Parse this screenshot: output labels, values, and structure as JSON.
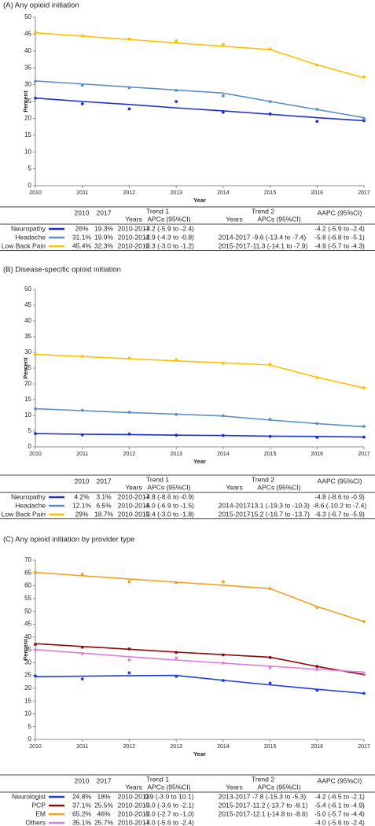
{
  "chart_data": [
    {
      "type": "line",
      "title": "(A)  Any opioid initiation",
      "xlabel": "Year",
      "ylabel": "Percent",
      "x": [
        2010,
        2011,
        2012,
        2013,
        2014,
        2015,
        2016,
        2017
      ],
      "xlim": [
        2010,
        2017
      ],
      "ylim": [
        0,
        50
      ],
      "yticks": [
        0,
        5,
        10,
        15,
        20,
        25,
        30,
        35,
        40,
        45,
        50
      ],
      "series": [
        {
          "name": "Neuropathy",
          "color": "#1f2fd6",
          "values": [
            26,
            25,
            24.1,
            23.1,
            22.2,
            21.2,
            20.2,
            19.3
          ],
          "points": [
            26,
            24.3,
            22.8,
            25,
            21.8,
            21.3,
            19.1,
            19.3
          ]
        },
        {
          "name": "Headache",
          "color": "#5b8fc4",
          "values": [
            31.1,
            30.2,
            29.3,
            28.4,
            27.5,
            25,
            22.6,
            20.2
          ],
          "points": [
            31,
            29.8,
            29.1,
            28.3,
            26.7,
            25,
            22.7,
            19.9
          ]
        },
        {
          "name": "Low Back Pain",
          "color": "#ffc000",
          "values": [
            45.4,
            44.4,
            43.4,
            42.4,
            41.4,
            40.4,
            35.9,
            32
          ],
          "points": [
            45.6,
            44.5,
            43.6,
            43,
            41.9,
            40.6,
            35.8,
            32.3
          ]
        }
      ],
      "table": {
        "columns": [
          "2010",
          "2017"
        ],
        "trends": [
          {
            "label": "Trend 1",
            "subheaders": [
              "Years",
              "APCs (95%CI)"
            ]
          },
          {
            "label": "Trend 2",
            "subheaders": [
              "Years",
              "APCs (95%CI)"
            ]
          }
        ],
        "aapc": "AAPC (95%CI)",
        "rows": [
          [
            "26%",
            "19.3%",
            "2010-2017",
            "-4.2 (-5.9 to -2.4)",
            null,
            null,
            "-4.2 (-5.9 to -2.4)"
          ],
          [
            "31.1%",
            "19.9%",
            "2010-2014",
            "-2.9 (-4.3 to -0.8)",
            "2014-2017",
            "-9.6 (-13.4 to -7.4)",
            "-5.8 (-6.8 to -5.1)"
          ],
          [
            "45.4%",
            "32.3%",
            "2010-2015",
            "-2.3 (-3.0 to -1.2)",
            "2015-2017",
            "-11.3 (-14.1 to -7.9)",
            "-4.9 (-5.7 to -4.3)"
          ]
        ]
      }
    },
    {
      "type": "line",
      "title": "(B)  Disease-specific opioid initiation",
      "xlabel": "Year",
      "ylabel": "Percent",
      "x": [
        2010,
        2011,
        2012,
        2013,
        2014,
        2015,
        2016,
        2017
      ],
      "xlim": [
        2010,
        2017
      ],
      "ylim": [
        0,
        50
      ],
      "yticks": [
        0,
        5,
        10,
        15,
        20,
        25,
        30,
        35,
        40,
        45,
        50
      ],
      "series": [
        {
          "name": "Neuropathy",
          "color": "#1f2fd6",
          "values": [
            4.2,
            4,
            3.9,
            3.7,
            3.6,
            3.4,
            3.3,
            3.1
          ],
          "points": [
            4.2,
            3.8,
            4.1,
            3.7,
            3.6,
            3.3,
            3,
            3.1
          ]
        },
        {
          "name": "Headache",
          "color": "#5b8fc4",
          "values": [
            12.1,
            11.5,
            10.9,
            10.4,
            9.8,
            8.5,
            7.4,
            6.4
          ],
          "points": [
            12.1,
            11.6,
            11,
            10.3,
            9.9,
            8.7,
            7.4,
            6.5
          ]
        },
        {
          "name": "Low Back Pain",
          "color": "#ffc000",
          "values": [
            29.4,
            28.7,
            28,
            27.3,
            26.7,
            26,
            22.1,
            18.7
          ],
          "points": [
            29.3,
            28.7,
            28.2,
            27.7,
            26.5,
            26.2,
            22,
            18.7
          ]
        }
      ],
      "table": {
        "columns": [
          "2010",
          "2017"
        ],
        "trends": [
          {
            "label": "Trend 1",
            "subheaders": [
              "Years",
              "APCs (95%CI)"
            ]
          },
          {
            "label": "Trend 2",
            "subheaders": [
              "Years",
              "APCs (95%CI)"
            ]
          }
        ],
        "aapc": "AAPC (95%CI)",
        "rows": [
          [
            "4.2%",
            "3.1%",
            "2010-2017",
            "-4.8 (-8.6 to -0.9)",
            null,
            null,
            "-4.8 (-8.6 to -0.9)"
          ],
          [
            "12.1%",
            "6.5%",
            "2010-2014",
            "-5.0 (-6.9 to -1.5)",
            "2014-2017",
            "-13.1 (-19.3 to -10.3)",
            "-8.6 (-10.2 to -7.4)"
          ],
          [
            "29%",
            "18.7%",
            "2010-2015",
            "-2.4 (-3.0 to -1.8)",
            "2015-2017",
            "-15.2 (-16.7 to -13.7)",
            "-6.3 (-6.7 to -5.9)"
          ]
        ]
      }
    },
    {
      "type": "line",
      "title": "(C)  Any opioid initiation by provider type",
      "xlabel": "Year",
      "ylabel": "Percent",
      "x": [
        2010,
        2011,
        2012,
        2013,
        2014,
        2015,
        2016,
        2017
      ],
      "xlim": [
        2010,
        2017
      ],
      "ylim": [
        0,
        70
      ],
      "yticks": [
        0,
        5,
        10,
        15,
        20,
        25,
        30,
        35,
        40,
        45,
        50,
        55,
        60,
        65,
        70
      ],
      "series": [
        {
          "name": "Neurologist",
          "color": "#1f3fdf",
          "values": [
            24.5,
            24.7,
            24.9,
            25,
            23.1,
            21.3,
            19.6,
            18
          ],
          "points": [
            24.8,
            23.6,
            26,
            24.6,
            23,
            22,
            19.2,
            18
          ]
        },
        {
          "name": "PCP",
          "color": "#8b0a0a",
          "values": [
            37.4,
            36.3,
            35.2,
            34.1,
            33.1,
            32.1,
            28.5,
            25.3
          ],
          "points": [
            37.1,
            36,
            35.3,
            34,
            33,
            32,
            28.5,
            25.5
          ]
        },
        {
          "name": "EM",
          "color": "#f0a020",
          "values": [
            65.2,
            63.9,
            62.6,
            61.4,
            60.2,
            58.9,
            51.9,
            46
          ],
          "points": [
            65.2,
            64.5,
            61.5,
            61.2,
            61.5,
            58.9,
            51.5,
            46
          ]
        },
        {
          "name": "Others",
          "color": "#e07be0",
          "values": [
            35.1,
            33.7,
            32.3,
            31,
            29.8,
            28.6,
            27.4,
            26.3
          ],
          "points": [
            35,
            33.5,
            31,
            31.8,
            29.8,
            28,
            27.3,
            25.7
          ]
        }
      ],
      "table": {
        "columns": [
          "2010",
          "2017"
        ],
        "trends": [
          {
            "label": "Trend 1",
            "subheaders": [
              "Years",
              "APCs (95%CI)"
            ]
          },
          {
            "label": "Trend 2",
            "subheaders": [
              "Years",
              "APCs (95%CI)"
            ]
          }
        ],
        "aapc": "AAPC (95%CI)",
        "rows": [
          [
            "24.8%",
            "18%",
            "2010-2013",
            "0.9 (-3.0 to 10.1)",
            "2013-2017",
            "-7.8 (-15.3 to -5.3)",
            "-4.2 (-6.5 to -2.1)"
          ],
          [
            "37.1%",
            "25.5%",
            "2010-2015",
            "-3.0 (-3.6 to -2.1)",
            "2015-2017",
            "-11.2 (-13.7 to -8.1)",
            "-5.4 (-6.1 to -4.9)"
          ],
          [
            "65.2%",
            "46%",
            "2010-2015",
            "-2.0 (-2.7 to -1.0)",
            "2015-2017",
            "-12.1 (-14.8 to -8.6)",
            "-5.0 (-5.7 to -4.4)"
          ],
          [
            "35.1%",
            "25.7%",
            "2010-2017",
            "-4.0 (-5.6 to -2.4)",
            null,
            null,
            "-4.0 (-5.6 to -2.4)"
          ]
        ]
      }
    }
  ]
}
